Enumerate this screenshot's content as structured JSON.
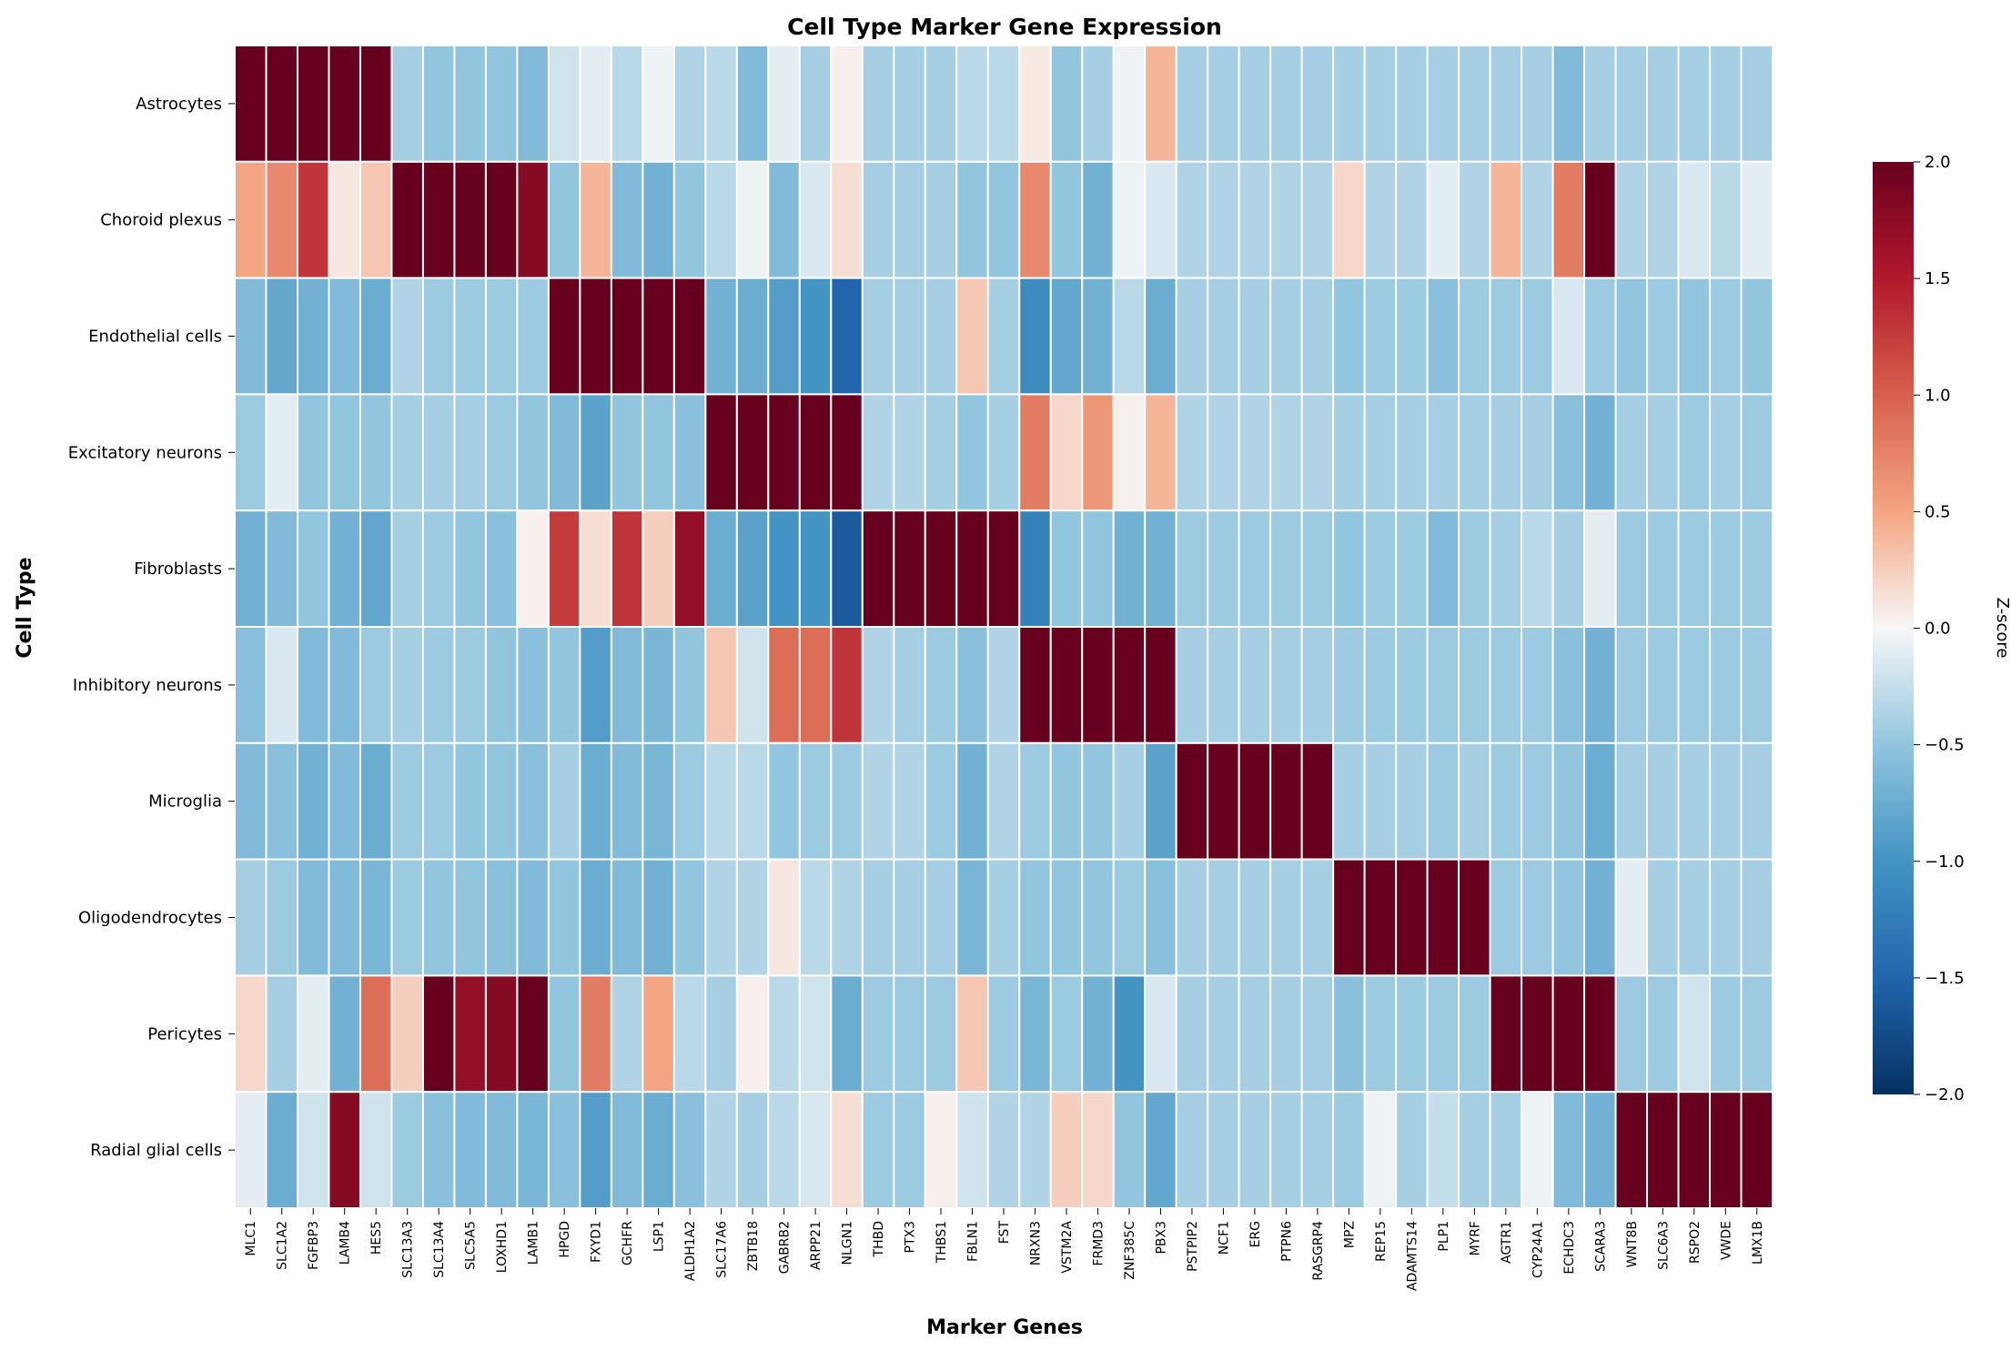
{
  "chart_data": {
    "type": "heatmap",
    "title": "Cell Type Marker Gene Expression",
    "xlabel": "Marker Genes",
    "ylabel": "Cell Type",
    "colorbar_label": "Z-score",
    "colormap": "RdBu_r",
    "zlim": [
      -2,
      2
    ],
    "colorbar_ticks": [
      "−2.0",
      "−1.5",
      "−1.0",
      "−0.5",
      "0.0",
      "0.5",
      "1.0",
      "1.5",
      "2.0"
    ],
    "colorbar_tick_values": [
      -2,
      -1.5,
      -1,
      -0.5,
      0,
      0.5,
      1,
      1.5,
      2
    ],
    "rows": [
      "Astrocytes",
      "Choroid plexus",
      "Endothelial cells",
      "Excitatory neurons",
      "Fibroblasts",
      "Inhibitory neurons",
      "Microglia",
      "Oligodendrocytes",
      "Pericytes",
      "Radial glial cells"
    ],
    "columns": [
      "MLC1",
      "SLC1A2",
      "FGFBP3",
      "LAMB4",
      "HES5",
      "SLC13A3",
      "SLC13A4",
      "SLC5A5",
      "LOXHD1",
      "LAMB1",
      "HPGD",
      "FXYD1",
      "GCHFR",
      "LSP1",
      "ALDH1A2",
      "SLC17A6",
      "ZBTB18",
      "GABRB2",
      "ARPP21",
      "NLGN1",
      "THBD",
      "PTX3",
      "THBS1",
      "FBLN1",
      "FST",
      "NRXN3",
      "VSTM2A",
      "FRMD3",
      "ZNF385C",
      "PBX3",
      "PSTPIP2",
      "NCF1",
      "ERG",
      "PTPN6",
      "RASGRP4",
      "MPZ",
      "REP15",
      "ADAMTS14",
      "PLP1",
      "MYRF",
      "AGTR1",
      "CYP24A1",
      "ECHDC3",
      "SCARA3",
      "WNT8B",
      "SLC6A3",
      "RSPO2",
      "VWDE",
      "LMX1B"
    ],
    "values": [
      [
        2.4,
        2.4,
        2.4,
        2.4,
        2.4,
        -0.4,
        -0.5,
        -0.5,
        -0.5,
        -0.6,
        -0.2,
        -0.1,
        -0.3,
        -0.05,
        -0.35,
        -0.3,
        -0.6,
        -0.1,
        -0.4,
        0.05,
        -0.4,
        -0.4,
        -0.4,
        -0.3,
        -0.3,
        0.08,
        -0.5,
        -0.4,
        -0.05,
        0.4,
        -0.4,
        -0.4,
        -0.4,
        -0.4,
        -0.4,
        -0.4,
        -0.4,
        -0.4,
        -0.4,
        -0.4,
        -0.4,
        -0.4,
        -0.6,
        -0.4,
        -0.4,
        -0.4,
        -0.4,
        -0.4,
        -0.4
      ],
      [
        0.5,
        0.7,
        1.3,
        0.1,
        0.3,
        2.4,
        2.1,
        2.4,
        2.4,
        1.8,
        -0.5,
        0.4,
        -0.6,
        -0.7,
        -0.5,
        -0.3,
        -0.05,
        -0.6,
        -0.15,
        0.15,
        -0.4,
        -0.4,
        -0.4,
        -0.5,
        -0.5,
        0.7,
        -0.5,
        -0.7,
        -0.05,
        -0.15,
        -0.35,
        -0.35,
        -0.35,
        -0.35,
        -0.35,
        0.2,
        -0.35,
        -0.35,
        -0.1,
        -0.35,
        0.4,
        -0.35,
        0.8,
        2.2,
        -0.35,
        -0.35,
        -0.15,
        -0.3,
        -0.1
      ],
      [
        -0.6,
        -0.8,
        -0.7,
        -0.6,
        -0.75,
        -0.35,
        -0.45,
        -0.45,
        -0.45,
        -0.45,
        2.4,
        2.3,
        2.3,
        2.3,
        2.4,
        -0.7,
        -0.75,
        -0.9,
        -1.0,
        -1.5,
        -0.4,
        -0.4,
        -0.4,
        0.3,
        -0.4,
        -1.1,
        -0.8,
        -0.7,
        -0.3,
        -0.75,
        -0.4,
        -0.4,
        -0.4,
        -0.4,
        -0.4,
        -0.5,
        -0.45,
        -0.45,
        -0.55,
        -0.45,
        -0.45,
        -0.45,
        -0.15,
        -0.45,
        -0.5,
        -0.45,
        -0.5,
        -0.45,
        -0.5
      ],
      [
        -0.45,
        -0.1,
        -0.5,
        -0.5,
        -0.5,
        -0.4,
        -0.4,
        -0.4,
        -0.45,
        -0.5,
        -0.6,
        -0.85,
        -0.5,
        -0.5,
        -0.55,
        2.4,
        2.4,
        2.4,
        2.4,
        2.4,
        -0.35,
        -0.35,
        -0.4,
        -0.5,
        -0.4,
        0.8,
        0.2,
        0.6,
        0.05,
        0.4,
        -0.35,
        -0.35,
        -0.35,
        -0.35,
        -0.35,
        -0.4,
        -0.4,
        -0.4,
        -0.4,
        -0.4,
        -0.4,
        -0.4,
        -0.55,
        -0.7,
        -0.4,
        -0.4,
        -0.45,
        -0.4,
        -0.45
      ],
      [
        -0.7,
        -0.6,
        -0.5,
        -0.7,
        -0.8,
        -0.4,
        -0.45,
        -0.5,
        -0.55,
        0.05,
        1.25,
        0.15,
        1.3,
        0.25,
        1.7,
        -0.75,
        -0.85,
        -1.0,
        -1.0,
        -1.6,
        2.4,
        2.4,
        2.4,
        2.4,
        2.4,
        -1.2,
        -0.5,
        -0.5,
        -0.7,
        -0.7,
        -0.45,
        -0.45,
        -0.45,
        -0.45,
        -0.45,
        -0.5,
        -0.45,
        -0.45,
        -0.6,
        -0.45,
        -0.4,
        -0.3,
        -0.4,
        -0.1,
        -0.45,
        -0.45,
        -0.45,
        -0.45,
        -0.45
      ],
      [
        -0.55,
        -0.15,
        -0.6,
        -0.6,
        -0.45,
        -0.4,
        -0.45,
        -0.45,
        -0.5,
        -0.55,
        -0.5,
        -0.9,
        -0.6,
        -0.65,
        -0.5,
        0.3,
        -0.2,
        0.9,
        0.9,
        1.3,
        -0.35,
        -0.4,
        -0.45,
        -0.55,
        -0.35,
        2.4,
        2.4,
        2.4,
        2.4,
        2.4,
        -0.4,
        -0.4,
        -0.4,
        -0.4,
        -0.4,
        -0.45,
        -0.45,
        -0.45,
        -0.45,
        -0.45,
        -0.45,
        -0.45,
        -0.55,
        -0.7,
        -0.45,
        -0.45,
        -0.45,
        -0.45,
        -0.45
      ],
      [
        -0.6,
        -0.55,
        -0.7,
        -0.6,
        -0.75,
        -0.45,
        -0.45,
        -0.5,
        -0.5,
        -0.55,
        -0.4,
        -0.75,
        -0.6,
        -0.65,
        -0.45,
        -0.3,
        -0.3,
        -0.5,
        -0.45,
        -0.45,
        -0.35,
        -0.35,
        -0.45,
        -0.7,
        -0.35,
        -0.45,
        -0.5,
        -0.5,
        -0.4,
        -0.85,
        2.4,
        2.4,
        2.4,
        2.4,
        2.4,
        -0.4,
        -0.4,
        -0.4,
        -0.45,
        -0.4,
        -0.45,
        -0.45,
        -0.5,
        -0.75,
        -0.4,
        -0.4,
        -0.4,
        -0.4,
        -0.4
      ],
      [
        -0.4,
        -0.45,
        -0.6,
        -0.6,
        -0.65,
        -0.45,
        -0.5,
        -0.5,
        -0.55,
        -0.6,
        -0.5,
        -0.75,
        -0.6,
        -0.7,
        -0.5,
        -0.35,
        -0.35,
        0.1,
        -0.3,
        -0.35,
        -0.4,
        -0.4,
        -0.4,
        -0.65,
        -0.4,
        -0.5,
        -0.5,
        -0.5,
        -0.45,
        -0.55,
        -0.4,
        -0.4,
        -0.4,
        -0.4,
        -0.4,
        2.4,
        2.4,
        2.4,
        2.4,
        2.4,
        -0.45,
        -0.45,
        -0.5,
        -0.7,
        -0.1,
        -0.4,
        -0.4,
        -0.4,
        -0.4
      ],
      [
        0.2,
        -0.4,
        -0.1,
        -0.7,
        0.9,
        0.25,
        2.2,
        1.7,
        1.8,
        2.4,
        -0.5,
        0.8,
        -0.35,
        0.5,
        -0.3,
        -0.4,
        0.05,
        -0.3,
        -0.2,
        -0.75,
        -0.45,
        -0.45,
        -0.45,
        0.3,
        -0.45,
        -0.65,
        -0.45,
        -0.7,
        -1.0,
        -0.15,
        -0.4,
        -0.4,
        -0.4,
        -0.4,
        -0.4,
        -0.55,
        -0.45,
        -0.45,
        -0.45,
        -0.45,
        2.4,
        2.4,
        2.4,
        2.4,
        -0.45,
        -0.45,
        -0.2,
        -0.45,
        -0.45
      ],
      [
        -0.1,
        -0.75,
        -0.2,
        1.8,
        -0.2,
        -0.45,
        -0.55,
        -0.6,
        -0.6,
        -0.65,
        -0.55,
        -0.9,
        -0.6,
        -0.75,
        -0.55,
        -0.35,
        -0.4,
        -0.3,
        -0.15,
        0.15,
        -0.45,
        -0.45,
        0.05,
        -0.2,
        -0.35,
        -0.35,
        0.25,
        0.2,
        -0.5,
        -0.8,
        -0.4,
        -0.4,
        -0.4,
        -0.4,
        -0.4,
        -0.45,
        -0.05,
        -0.4,
        -0.25,
        -0.4,
        -0.4,
        -0.05,
        -0.6,
        -0.7,
        2.4,
        2.4,
        2.4,
        2.4,
        2.4
      ]
    ]
  }
}
